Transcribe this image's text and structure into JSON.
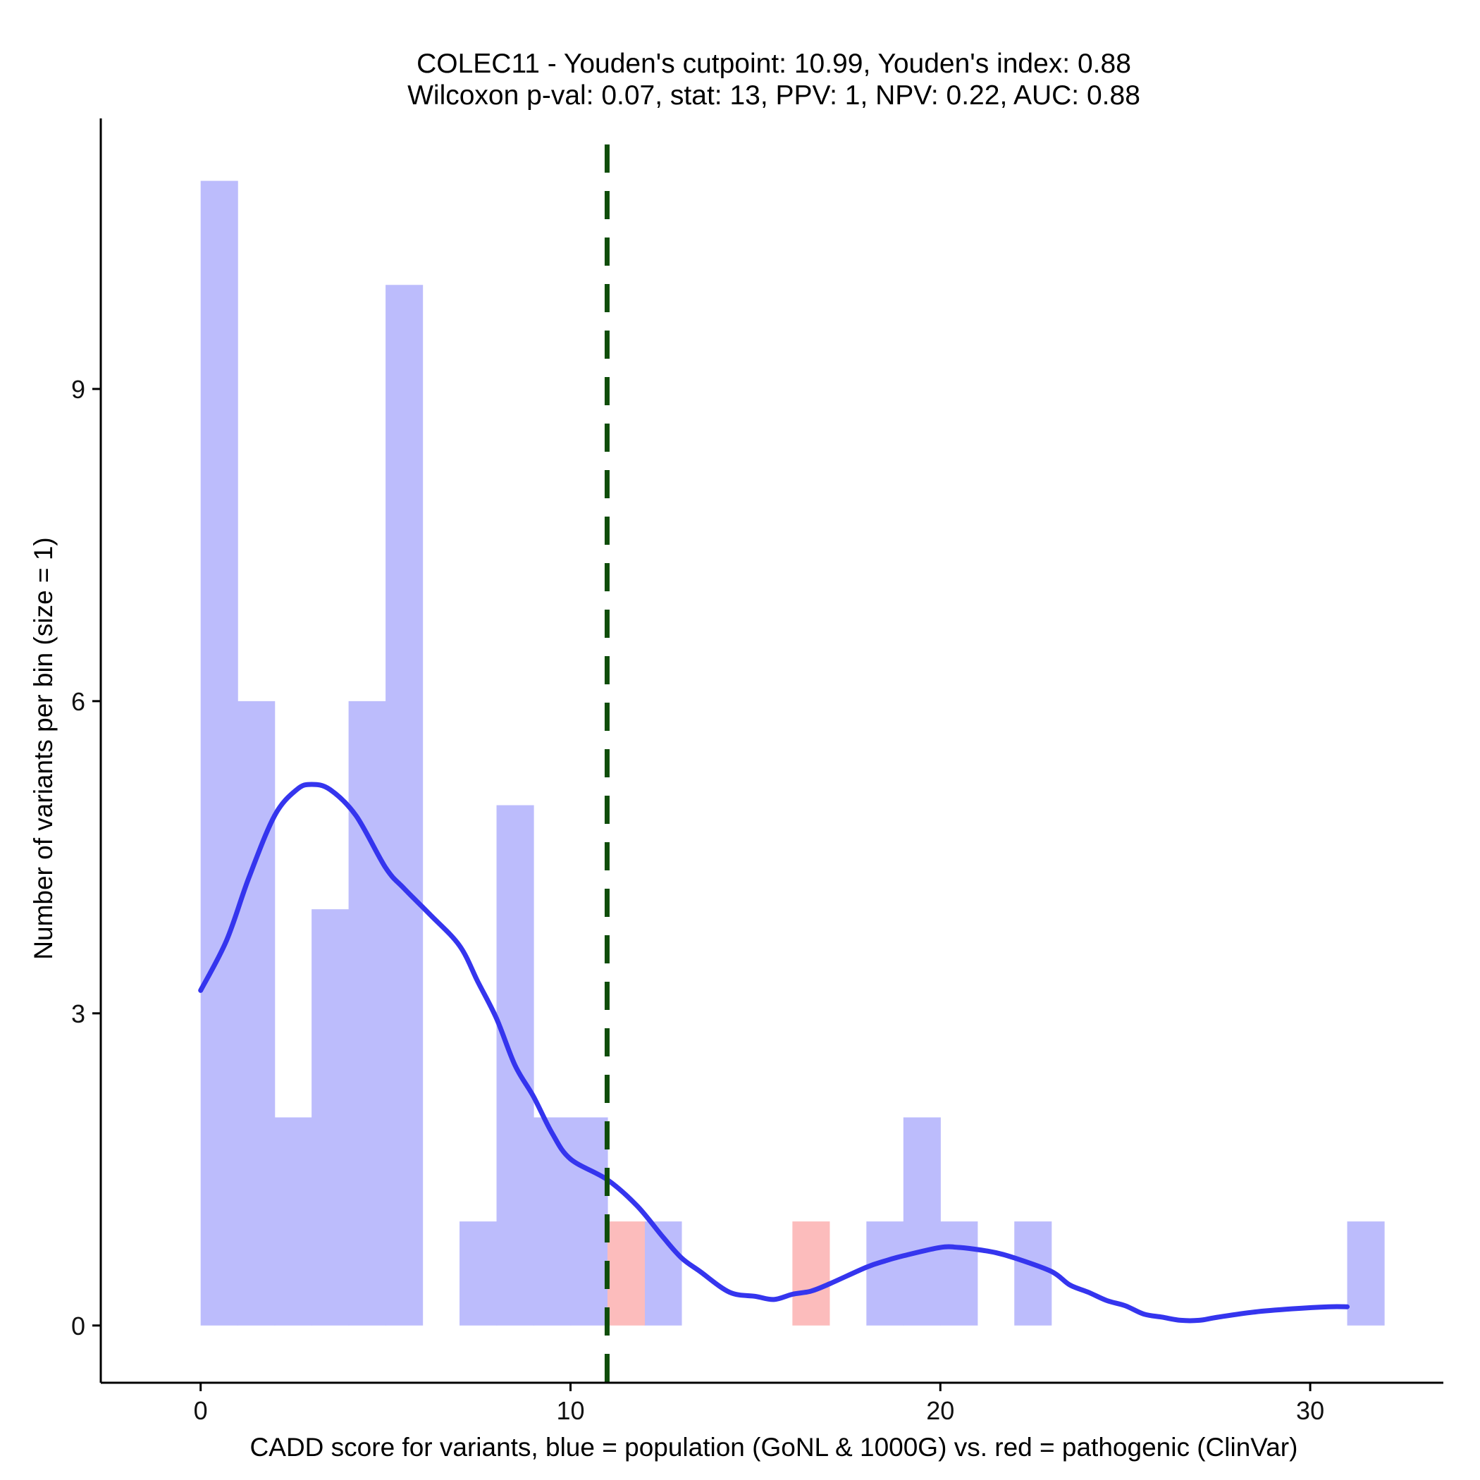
{
  "chart_data": {
    "type": "bar",
    "title_line1": "COLEC11 - Youden's cutpoint: 10.99, Youden's index: 0.88",
    "title_line2": "Wilcoxon p-val: 0.07, stat: 13, PPV: 1, NPV: 0.22, AUC: 0.88",
    "xlabel": "CADD score for variants, blue = population (GoNL & 1000G) vs. red = pathogenic (ClinVar)",
    "ylabel": "Number of variants per bin (size = 1)",
    "xlim": [
      -2.7,
      33.6
    ],
    "ylim": [
      -0.55,
      11.6
    ],
    "x_ticks": [
      0,
      10,
      20,
      30
    ],
    "x_tick_labels": [
      "0",
      "10",
      "20",
      "30"
    ],
    "y_ticks": [
      0,
      3,
      6,
      9
    ],
    "y_tick_labels": [
      "0",
      "3",
      "6",
      "9"
    ],
    "bin_width": 1,
    "grid": false,
    "legend": "none",
    "series": [
      {
        "name": "blue = population (GoNL & 1000G)",
        "color": "#bcbcfc",
        "bins": [
          {
            "x0": 0,
            "count": 11
          },
          {
            "x0": 1,
            "count": 6
          },
          {
            "x0": 2,
            "count": 2
          },
          {
            "x0": 3,
            "count": 4
          },
          {
            "x0": 4,
            "count": 6
          },
          {
            "x0": 5,
            "count": 10
          },
          {
            "x0": 7,
            "count": 1
          },
          {
            "x0": 8,
            "count": 5
          },
          {
            "x0": 9,
            "count": 2
          },
          {
            "x0": 10,
            "count": 2
          },
          {
            "x0": 12,
            "count": 1
          },
          {
            "x0": 18,
            "count": 1
          },
          {
            "x0": 19,
            "count": 2
          },
          {
            "x0": 20,
            "count": 1
          },
          {
            "x0": 22,
            "count": 1
          },
          {
            "x0": 31,
            "count": 1
          }
        ]
      },
      {
        "name": "red = pathogenic (ClinVar)",
        "color": "#fcbcbc",
        "bins": [
          {
            "x0": 11,
            "count": 1
          },
          {
            "x0": 16,
            "count": 1
          }
        ]
      }
    ],
    "density_curve": {
      "color": "#3535ee",
      "points": [
        [
          0,
          3.22
        ],
        [
          0.7,
          3.7
        ],
        [
          1.3,
          4.3
        ],
        [
          2.0,
          4.9
        ],
        [
          2.6,
          5.15
        ],
        [
          3.0,
          5.2
        ],
        [
          3.5,
          5.15
        ],
        [
          4.2,
          4.9
        ],
        [
          5.0,
          4.4
        ],
        [
          5.5,
          4.2
        ],
        [
          6.2,
          3.95
        ],
        [
          7.0,
          3.65
        ],
        [
          7.5,
          3.3
        ],
        [
          8.0,
          2.95
        ],
        [
          8.5,
          2.5
        ],
        [
          9.0,
          2.2
        ],
        [
          9.5,
          1.85
        ],
        [
          10.0,
          1.6
        ],
        [
          11.0,
          1.4
        ],
        [
          11.8,
          1.15
        ],
        [
          12.5,
          0.85
        ],
        [
          13.0,
          0.65
        ],
        [
          13.5,
          0.52
        ],
        [
          14.3,
          0.32
        ],
        [
          15.0,
          0.28
        ],
        [
          15.5,
          0.25
        ],
        [
          16.0,
          0.3
        ],
        [
          16.5,
          0.33
        ],
        [
          17.0,
          0.4
        ],
        [
          18.0,
          0.56
        ],
        [
          18.5,
          0.62
        ],
        [
          19.0,
          0.67
        ],
        [
          20.0,
          0.75
        ],
        [
          20.5,
          0.75
        ],
        [
          21.0,
          0.73
        ],
        [
          21.5,
          0.7
        ],
        [
          22.0,
          0.65
        ],
        [
          23.0,
          0.52
        ],
        [
          23.5,
          0.39
        ],
        [
          24.0,
          0.32
        ],
        [
          24.5,
          0.24
        ],
        [
          25.0,
          0.19
        ],
        [
          25.5,
          0.11
        ],
        [
          26.0,
          0.08
        ],
        [
          26.5,
          0.05
        ],
        [
          27.0,
          0.05
        ],
        [
          27.5,
          0.08
        ],
        [
          28.5,
          0.13
        ],
        [
          29.5,
          0.16
        ],
        [
          30.5,
          0.18
        ],
        [
          31.0,
          0.18
        ]
      ]
    },
    "cutpoint_line": {
      "x": 10.99,
      "color": "#0f4d0a"
    }
  }
}
